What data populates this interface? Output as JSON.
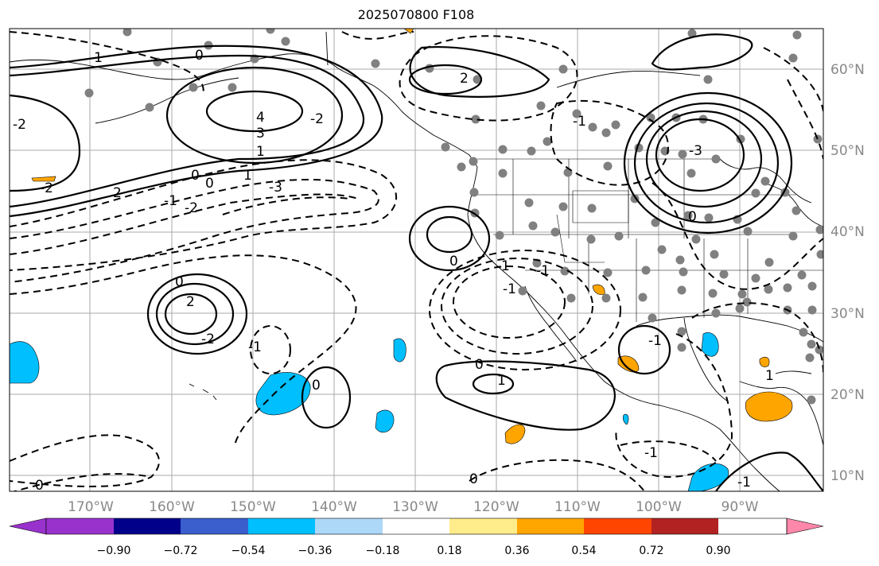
{
  "title": "2025070800 F108",
  "map": {
    "lat_labels": [
      "60°N",
      "50°N",
      "40°N",
      "30°N",
      "20°N",
      "10°N"
    ],
    "lon_labels": [
      "170°W",
      "160°W",
      "150°W",
      "140°W",
      "130°W",
      "120°W",
      "110°W",
      "100°W",
      "90°W"
    ],
    "contour_labels": [
      "-1",
      "0",
      "2",
      "-2",
      "4",
      "3",
      "-2",
      "-1",
      "0",
      "-3",
      "2",
      "1",
      "-1",
      "-2",
      "0",
      "1",
      "0",
      "-2",
      "2",
      "0",
      "-1",
      "-2",
      "0",
      "-1",
      "1",
      "-1",
      "0",
      "1",
      "0",
      "-1",
      "-1",
      "-1",
      "0",
      "-1",
      "-3",
      "0"
    ],
    "colors": {
      "land_outline": "#000000",
      "grid": "#aaaaaa",
      "station_dots": "#808080",
      "positive_contour": "solid black",
      "negative_contour": "dashed black"
    }
  },
  "colorbar": {
    "tick_labels": [
      "−0.90",
      "−0.72",
      "−0.54",
      "−0.36",
      "−0.18",
      "0.18",
      "0.36",
      "0.54",
      "0.72",
      "0.90"
    ],
    "colors": [
      "#9932cc",
      "#00008b",
      "#3a5fcd",
      "#00bfff",
      "#add8f8",
      "#ffffff",
      "#ffec8b",
      "#ffa500",
      "#ff4500",
      "#b22222",
      "#ff88aa"
    ]
  }
}
